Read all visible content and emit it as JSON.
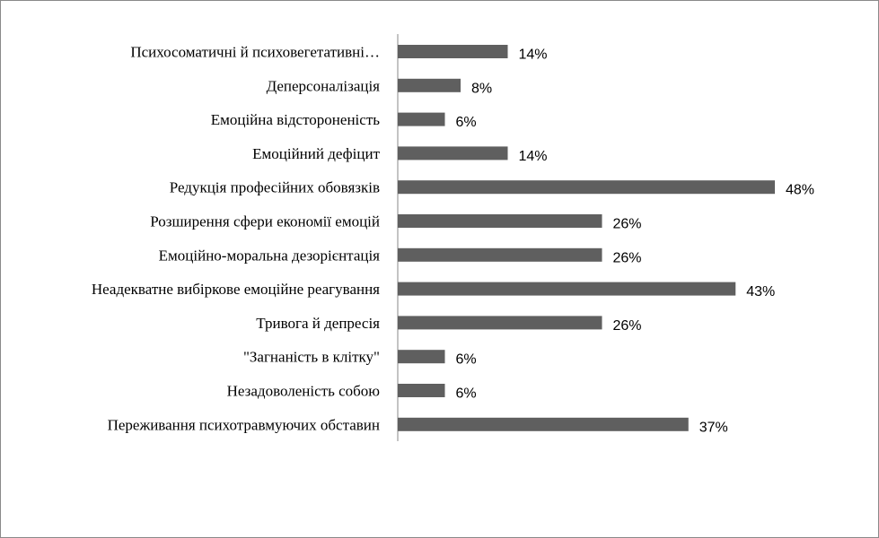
{
  "chart_data": {
    "type": "bar",
    "orientation": "horizontal",
    "title": "",
    "xlabel": "",
    "ylabel": "",
    "xlim": [
      0,
      48
    ],
    "grid": false,
    "legend": "none",
    "bar_color": "#5f5f5f",
    "categories": [
      "Психосоматичні й психовегетативні…",
      "Деперсоналізація",
      "Емоційна відстороненість",
      "Емоційний дефіцит",
      "Редукція професійних обовязків",
      "Розширення сфери економії емоцій",
      "Емоційно-моральна дезорієнтація",
      "Неадекватне вибіркове емоційне реагування",
      "Тривога й депресія",
      "\"Загнаність в клітку\"",
      "Незадоволеність собою",
      "Переживання психотравмуючих обставин"
    ],
    "values": [
      14,
      8,
      6,
      14,
      48,
      26,
      26,
      43,
      26,
      6,
      6,
      37
    ],
    "value_labels": [
      "14%",
      "8%",
      "6%",
      "14%",
      "48%",
      "26%",
      "26%",
      "43%",
      "26%",
      "6%",
      "6%",
      "37%"
    ]
  }
}
